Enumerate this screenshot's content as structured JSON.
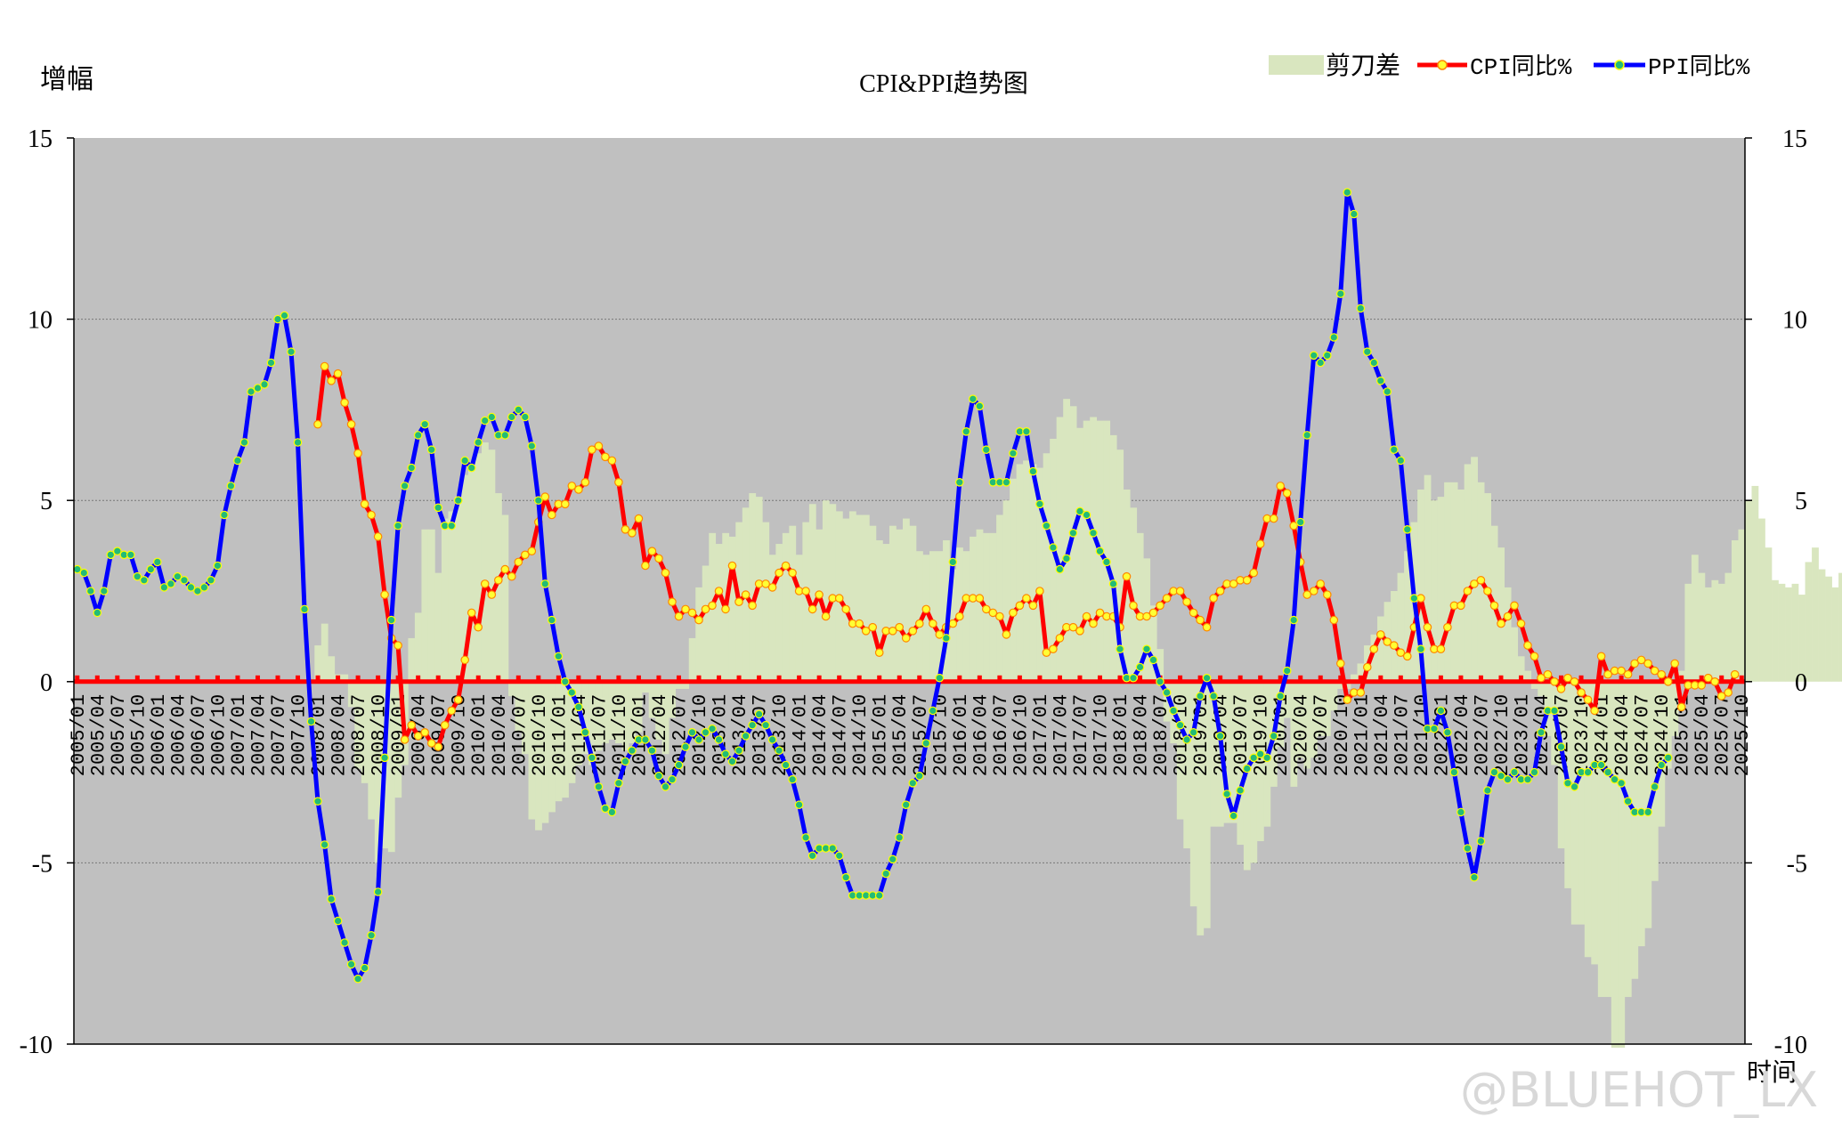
{
  "chart_data": {
    "type": "line",
    "title": "CPI&PPI趋势图",
    "ylabel": "增幅",
    "xlabel": "时间",
    "ylim": [
      -10,
      15
    ],
    "yticks": [
      -10,
      -5,
      0,
      5,
      10,
      15
    ],
    "grid": true,
    "legend_position": "top-right",
    "x_start": "2005/01",
    "x_end": "2025/10",
    "x_tick_step_months": 3,
    "watermark": "@BLUEHOT_LX",
    "series": [
      {
        "name": "剪刀差",
        "kind": "bar",
        "color": "#d9e6bf",
        "start": "2008/01",
        "end": "2025/10",
        "values": [
          1.0,
          1.6,
          0.7,
          0.2,
          0.2,
          -0.7,
          -2.4,
          -2.8,
          -3.8,
          -5.0,
          -4.6,
          -4.7,
          -3.2,
          -2.3,
          1.2,
          1.9,
          4.2,
          4.2,
          3.0,
          4.5,
          4.7,
          5.1,
          5.7,
          6.0,
          6.3,
          6.6,
          6.4,
          5.2,
          4.6,
          -0.4,
          -1.4,
          -2.0,
          -3.8,
          -4.1,
          -3.9,
          -3.6,
          -3.3,
          -3.2,
          -2.8,
          -2.3,
          -2.0,
          -2.3,
          -1.9,
          -1.7,
          -1.6,
          -1.7,
          -1.9,
          -1.7,
          -1.4,
          -0.3,
          -1.0,
          -1.6,
          -2.0,
          -1.0,
          -0.2,
          -0.2,
          1.2,
          2.6,
          3.2,
          4.1,
          3.8,
          4.1,
          4.0,
          4.4,
          4.8,
          5.2,
          5.1,
          4.4,
          3.5,
          3.8,
          4.1,
          4.3,
          3.5,
          4.4,
          4.9,
          4.2,
          5.0,
          4.9,
          4.7,
          4.5,
          4.7,
          4.6,
          4.6,
          4.3,
          3.9,
          3.8,
          4.3,
          4.2,
          4.5,
          4.3,
          3.6,
          3.5,
          3.6,
          3.6,
          3.9,
          3.1,
          3.7,
          3.6,
          4.0,
          4.2,
          4.1,
          4.1,
          4.6,
          5.0,
          5.6,
          6.0,
          6.1,
          6.0,
          5.9,
          6.3,
          6.7,
          7.3,
          7.8,
          7.6,
          7.0,
          7.2,
          7.3,
          7.2,
          7.2,
          6.8,
          6.4,
          5.3,
          4.8,
          4.1,
          3.4,
          2.1,
          0.9,
          -1.1,
          -1.7,
          -3.8,
          -4.6,
          -6.2,
          -7.0,
          -6.8,
          -4.0,
          -4.0,
          -3.9,
          -3.9,
          -4.5,
          -5.2,
          -5.0,
          -4.4,
          -4.0,
          -2.9,
          -1.8,
          -1.0,
          -2.9,
          -2.1,
          -2.4,
          -2.1,
          -1.5,
          -1.5,
          -0.8,
          -0.2,
          -0.2,
          0.2,
          0.5,
          1.0,
          1.3,
          1.8,
          2.2,
          2.5,
          3.0,
          3.6,
          4.4,
          5.3,
          5.7,
          5.0,
          5.1,
          5.5,
          5.5,
          5.3,
          6.0,
          6.2,
          5.5,
          5.2,
          4.3,
          3.7,
          2.6,
          1.5,
          0.7,
          0.3,
          -0.2,
          -0.4,
          -1.5,
          -2.3,
          -4.6,
          -5.7,
          -6.7,
          -6.7,
          -7.6,
          -7.8,
          -8.7,
          -8.7,
          -10.1,
          -10.1,
          -8.7,
          -8.2,
          -7.3,
          -6.8,
          -5.5,
          -4.0,
          -2.4,
          -1.5,
          0.3,
          2.7,
          3.5,
          3.0,
          2.6,
          2.8,
          2.7,
          3.0,
          3.9,
          4.2,
          5.0,
          5.4,
          4.5,
          3.7,
          2.8,
          2.7,
          2.6,
          2.7,
          2.4,
          3.3,
          3.7,
          3.1,
          2.9,
          2.6,
          3.0,
          3.1,
          2.4,
          3.3,
          3.3,
          3.0,
          2.5,
          3.2,
          3.0,
          2.7,
          2.9,
          2.7,
          2.0,
          2.7,
          2.7,
          3.4,
          3.7,
          3.6,
          2.2,
          2.6,
          2.4,
          2.2
        ]
      },
      {
        "name": "CPI同比%",
        "kind": "line",
        "color": "#ff0000",
        "marker": "#ffff33",
        "start": "2008/01",
        "end": "2025/10",
        "values": [
          7.1,
          8.7,
          8.3,
          8.5,
          7.7,
          7.1,
          6.3,
          4.9,
          4.6,
          4.0,
          2.4,
          1.2,
          1.0,
          -1.6,
          -1.2,
          -1.5,
          -1.4,
          -1.7,
          -1.8,
          -1.2,
          -0.8,
          -0.5,
          0.6,
          1.9,
          1.5,
          2.7,
          2.4,
          2.8,
          3.1,
          2.9,
          3.3,
          3.5,
          3.6,
          4.4,
          5.1,
          4.6,
          4.9,
          4.9,
          5.4,
          5.3,
          5.5,
          6.4,
          6.5,
          6.2,
          6.1,
          5.5,
          4.2,
          4.1,
          4.5,
          3.2,
          3.6,
          3.4,
          3.0,
          2.2,
          1.8,
          2.0,
          1.9,
          1.7,
          2.0,
          2.1,
          2.5,
          2.0,
          3.2,
          2.2,
          2.4,
          2.1,
          2.7,
          2.7,
          2.6,
          3.0,
          3.2,
          3.0,
          2.5,
          2.5,
          2.0,
          2.4,
          1.8,
          2.3,
          2.3,
          2.0,
          1.6,
          1.6,
          1.4,
          1.5,
          0.8,
          1.4,
          1.4,
          1.5,
          1.2,
          1.4,
          1.6,
          2.0,
          1.6,
          1.3,
          1.5,
          1.6,
          1.8,
          2.3,
          2.3,
          2.3,
          2.0,
          1.9,
          1.8,
          1.3,
          1.9,
          2.1,
          2.3,
          2.1,
          2.5,
          0.8,
          0.9,
          1.2,
          1.5,
          1.5,
          1.4,
          1.8,
          1.6,
          1.9,
          1.8,
          1.8,
          1.5,
          2.9,
          2.1,
          1.8,
          1.8,
          1.9,
          2.1,
          2.3,
          2.5,
          2.5,
          2.2,
          1.9,
          1.7,
          1.5,
          2.3,
          2.5,
          2.7,
          2.7,
          2.8,
          2.8,
          3.0,
          3.8,
          4.5,
          4.5,
          5.4,
          5.2,
          4.3,
          3.3,
          2.4,
          2.5,
          2.7,
          2.4,
          1.7,
          0.5,
          -0.5,
          -0.3,
          -0.3,
          0.4,
          0.9,
          1.3,
          1.1,
          1.0,
          0.8,
          0.7,
          1.5,
          2.3,
          1.5,
          0.9,
          0.9,
          1.5,
          2.1,
          2.1,
          2.5,
          2.7,
          2.8,
          2.5,
          2.1,
          1.6,
          1.8,
          2.1,
          1.6,
          1.0,
          0.7,
          0.1,
          0.2,
          0.0,
          -0.2,
          0.1,
          0.0,
          -0.3,
          -0.5,
          -0.8,
          0.7,
          0.2,
          0.3,
          0.3,
          0.2,
          0.5,
          0.6,
          0.5,
          0.3,
          0.2,
          0.0,
          0.5,
          -0.7,
          -0.1,
          -0.1,
          -0.1,
          0.1,
          0.0,
          -0.4,
          -0.3,
          0.2
        ]
      },
      {
        "name": "PPI同比%",
        "kind": "line",
        "color": "#0000ff",
        "marker": "#22bb77",
        "start": "2005/01",
        "end": "2025/10",
        "values": [
          3.1,
          3.0,
          2.5,
          1.9,
          2.5,
          3.5,
          3.6,
          3.5,
          3.5,
          2.9,
          2.8,
          3.1,
          3.3,
          2.6,
          2.7,
          2.9,
          2.8,
          2.6,
          2.5,
          2.6,
          2.8,
          3.2,
          4.6,
          5.4,
          6.1,
          6.6,
          8.0,
          8.1,
          8.2,
          8.8,
          10.0,
          10.1,
          9.1,
          6.6,
          2.0,
          -1.1,
          -3.3,
          -4.5,
          -6.0,
          -6.6,
          -7.2,
          -7.8,
          -8.2,
          -7.9,
          -7.0,
          -5.8,
          -2.1,
          1.7,
          4.3,
          5.4,
          5.9,
          6.8,
          7.1,
          6.4,
          4.8,
          4.3,
          4.3,
          5.0,
          6.1,
          5.9,
          6.6,
          7.2,
          7.3,
          6.8,
          6.8,
          7.3,
          7.5,
          7.3,
          6.5,
          5.0,
          2.7,
          1.7,
          0.7,
          0.0,
          -0.3,
          -0.7,
          -1.4,
          -2.1,
          -2.9,
          -3.5,
          -3.6,
          -2.8,
          -2.2,
          -1.9,
          -1.6,
          -1.6,
          -1.9,
          -2.6,
          -2.9,
          -2.7,
          -2.3,
          -1.8,
          -1.4,
          -1.6,
          -1.4,
          -1.3,
          -1.6,
          -2.0,
          -2.2,
          -1.9,
          -1.5,
          -1.2,
          -0.9,
          -1.2,
          -1.6,
          -1.9,
          -2.3,
          -2.7,
          -3.4,
          -4.3,
          -4.8,
          -4.6,
          -4.6,
          -4.6,
          -4.8,
          -5.4,
          -5.9,
          -5.9,
          -5.9,
          -5.9,
          -5.9,
          -5.3,
          -4.9,
          -4.3,
          -3.4,
          -2.8,
          -2.6,
          -1.7,
          -0.8,
          0.1,
          1.2,
          3.3,
          5.5,
          6.9,
          7.8,
          7.6,
          6.4,
          5.5,
          5.5,
          5.5,
          6.3,
          6.9,
          6.9,
          5.8,
          4.9,
          4.3,
          3.7,
          3.1,
          3.4,
          4.1,
          4.7,
          4.6,
          4.1,
          3.6,
          3.3,
          2.7,
          0.9,
          0.1,
          0.1,
          0.4,
          0.9,
          0.6,
          0.0,
          -0.3,
          -0.8,
          -1.2,
          -1.6,
          -1.4,
          -0.4,
          0.1,
          -0.4,
          -1.5,
          -3.1,
          -3.7,
          -3.0,
          -2.4,
          -2.1,
          -2.0,
          -2.1,
          -1.5,
          -0.4,
          0.3,
          1.7,
          4.4,
          6.8,
          9.0,
          8.8,
          9.0,
          9.5,
          10.7,
          13.5,
          12.9,
          10.3,
          9.1,
          8.8,
          8.3,
          8.0,
          6.4,
          6.1,
          4.2,
          2.3,
          0.9,
          -1.3,
          -1.3,
          -0.8,
          -1.4,
          -2.5,
          -3.6,
          -4.6,
          -5.4,
          -4.4,
          -3.0,
          -2.5,
          -2.6,
          -2.7,
          -2.5,
          -2.7,
          -2.7,
          -2.5,
          -1.4,
          -0.8,
          -0.8,
          -1.8,
          -2.8,
          -2.9,
          -2.5,
          -2.5,
          -2.3,
          -2.3,
          -2.5,
          -2.7,
          -2.8,
          -3.3,
          -3.6,
          -3.6,
          -3.6,
          -2.9,
          -2.3,
          -2.1
        ]
      },
      {
        "name": "zero-line",
        "kind": "reference",
        "value": 0,
        "color": "#ff0000"
      }
    ]
  }
}
